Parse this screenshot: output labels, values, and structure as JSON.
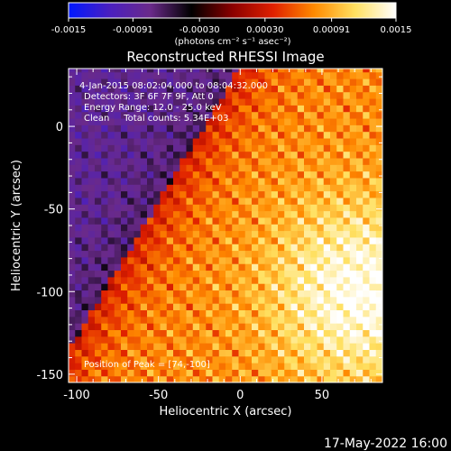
{
  "chart_data": {
    "type": "heatmap",
    "title": "Reconstructed RHESSI Image",
    "xlabel": "Heliocentric X (arcsec)",
    "ylabel": "Heliocentric Y (arcsec)",
    "xlim": [
      -105,
      87
    ],
    "ylim": [
      -155,
      35
    ],
    "x_ticks": [
      -100,
      -50,
      0,
      50
    ],
    "y_ticks": [
      0,
      -50,
      -100,
      -150
    ],
    "colorbar": {
      "label": "(photons cm⁻² s⁻¹ asec⁻²)",
      "ticks": [
        "-0.0015",
        "-0.00091",
        "-0.00030",
        "0.00030",
        "0.00091",
        "0.0015"
      ],
      "range": [
        -0.0015,
        0.0015
      ],
      "colors": [
        "#0018ff",
        "#4a1fc0",
        "#6a2a8a",
        "#000000",
        "#8a0000",
        "#e02000",
        "#ff8a00",
        "#ffe060",
        "#ffffff"
      ]
    },
    "annotations": [
      "4-Jan-2015 08:02:04.000 to 08:04:32.000",
      "Detectors: 3F 6F 7F 9F, Att 0",
      "Energy Range: 12.0 - 25.0 keV",
      "Clean     Total counts: 5.34E+03"
    ],
    "peak_label": "Position of Peak = [74,-100]",
    "peak": [
      74,
      -100
    ],
    "date_stamp": "17-May-2022 16:00"
  }
}
